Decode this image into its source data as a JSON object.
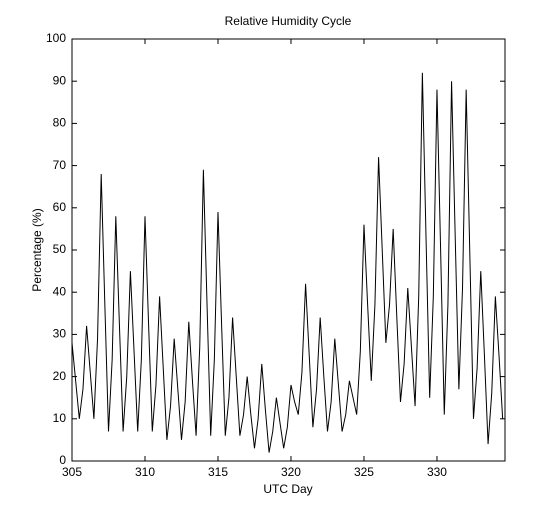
{
  "chart_data": {
    "type": "line",
    "title": "Relative Humidity Cycle",
    "xlabel": "UTC Day",
    "ylabel": "Percentage (%)",
    "x": [
      305,
      305.25,
      305.5,
      305.75,
      306,
      306.25,
      306.5,
      306.75,
      307,
      307.25,
      307.5,
      307.75,
      308,
      308.25,
      308.5,
      308.75,
      309,
      309.25,
      309.5,
      309.75,
      310,
      310.25,
      310.5,
      310.75,
      311,
      311.25,
      311.5,
      311.75,
      312,
      312.25,
      312.5,
      312.75,
      313,
      313.25,
      313.5,
      313.75,
      314,
      314.25,
      314.5,
      314.75,
      315,
      315.25,
      315.5,
      315.75,
      316,
      316.25,
      316.5,
      316.75,
      317,
      317.25,
      317.5,
      317.75,
      318,
      318.25,
      318.5,
      318.75,
      319,
      319.25,
      319.5,
      319.75,
      320,
      320.25,
      320.5,
      320.75,
      321,
      321.25,
      321.5,
      321.75,
      322,
      322.25,
      322.5,
      322.75,
      323,
      323.25,
      323.5,
      323.75,
      324,
      324.25,
      324.5,
      324.75,
      325,
      325.25,
      325.5,
      325.75,
      326,
      326.25,
      326.5,
      326.75,
      327,
      327.25,
      327.5,
      327.75,
      328,
      328.25,
      328.5,
      328.75,
      329,
      329.25,
      329.5,
      329.75,
      330,
      330.25,
      330.5,
      330.75,
      331,
      331.25,
      331.5,
      331.75,
      332,
      332.25,
      332.5,
      332.75,
      333,
      333.25,
      333.5,
      333.75,
      334,
      334.25,
      334.5
    ],
    "series": [
      {
        "name": "Relative Humidity",
        "color": "#000000",
        "values": [
          28,
          19,
          10,
          17,
          32,
          21,
          10,
          29,
          68,
          37,
          7,
          24,
          58,
          32,
          7,
          20,
          45,
          26,
          7,
          24,
          58,
          32,
          7,
          18,
          39,
          22,
          5,
          13,
          29,
          17,
          5,
          14,
          33,
          19,
          6,
          27,
          69,
          37,
          6,
          24,
          59,
          32,
          6,
          15,
          34,
          20,
          6,
          11,
          20,
          11,
          3,
          10,
          23,
          12,
          2,
          7,
          15,
          9,
          3,
          8,
          18,
          14,
          11,
          21,
          42,
          25,
          8,
          17,
          34,
          20,
          7,
          14,
          29,
          18,
          7,
          11,
          19,
          15,
          11,
          26,
          56,
          37,
          19,
          37,
          72,
          50,
          28,
          37,
          55,
          34,
          14,
          23,
          41,
          27,
          13,
          39,
          92,
          53,
          15,
          39,
          88,
          50,
          11,
          37,
          90,
          53,
          17,
          41,
          88,
          49,
          10,
          22,
          45,
          25,
          4,
          16,
          39,
          25,
          10
        ]
      }
    ],
    "xlim": [
      305,
      334.66
    ],
    "xticks": [
      305,
      310,
      315,
      320,
      325,
      330
    ],
    "ylim": [
      0,
      100
    ],
    "yticks": [
      0,
      10,
      20,
      30,
      40,
      50,
      60,
      70,
      80,
      90,
      100
    ]
  }
}
